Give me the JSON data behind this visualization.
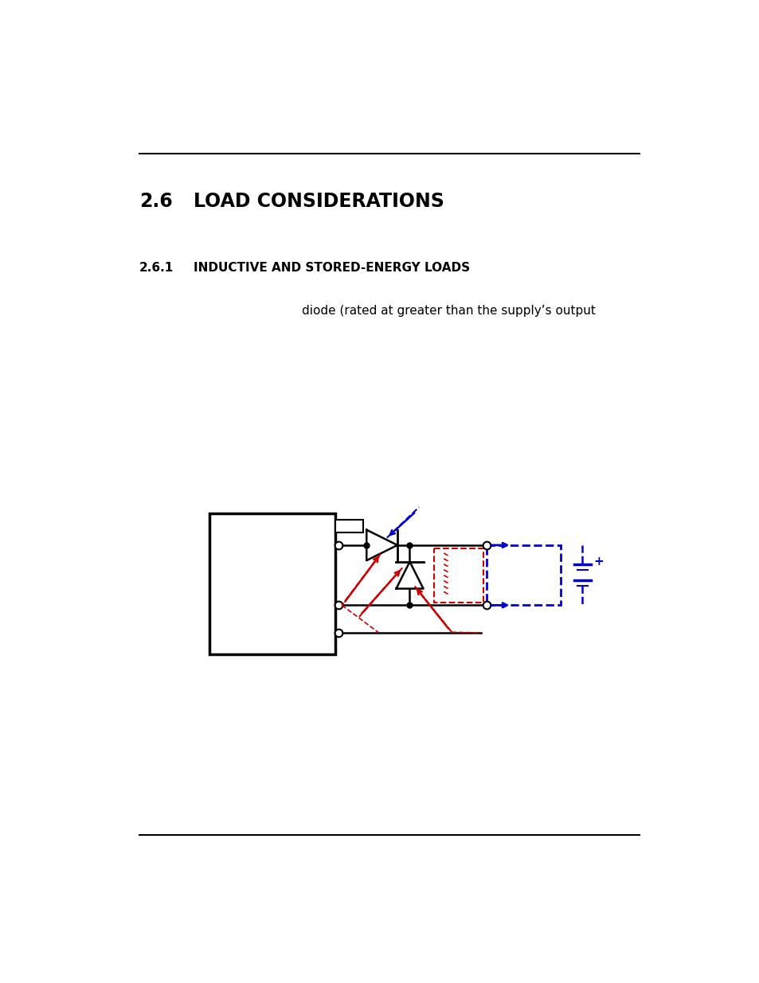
{
  "title_section": "2.6",
  "title_text": "LOAD CONSIDERATIONS",
  "subtitle_section": "2.6.1",
  "subtitle_text": "INDUCTIVE AND STORED-ENERGY LOADS",
  "body_text": "diode (rated at greater than the supply’s output",
  "bg_color": "#ffffff",
  "text_color": "#000000",
  "blue_color": "#0000cc",
  "red_color": "#cc0000",
  "line_color": "#000000"
}
